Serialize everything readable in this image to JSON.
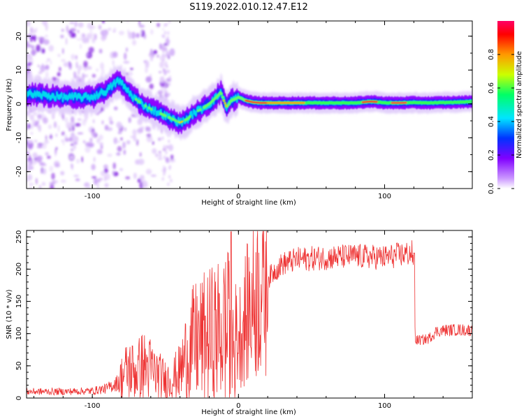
{
  "title": "S119.2022.010.12.47.E12",
  "chart_data": [
    {
      "type": "heatmap",
      "xlabel": "Height of straight line (km)",
      "ylabel": "Frequency (Hz)",
      "xlim": [
        -145,
        160
      ],
      "ylim": [
        -25,
        24.5
      ],
      "xticks": [
        -100,
        0,
        100
      ],
      "yticks": [
        -20,
        -10,
        0,
        10,
        20
      ],
      "colorbar": {
        "label": "Normalized spectral amplitude",
        "range": [
          0,
          1
        ],
        "ticks": [
          0.0,
          0.2,
          0.4,
          0.6,
          0.8
        ],
        "colormap": [
          "#ffffff",
          "#cc99ff",
          "#8000ff",
          "#0033ff",
          "#00e5ff",
          "#00ff66",
          "#ccff00",
          "#ff9900",
          "#ff0000",
          "#ff0066"
        ]
      },
      "ridge": {
        "x": [
          -145,
          -120,
          -100,
          -90,
          -82,
          -78,
          -72,
          -66,
          -60,
          -55,
          -50,
          -45,
          -40,
          -35,
          -30,
          -25,
          -20,
          -15,
          -12,
          -10,
          -8,
          -5,
          -2,
          0,
          5,
          10,
          15,
          20,
          40,
          60,
          80,
          90,
          95,
          100,
          110,
          120,
          130,
          140,
          150,
          160
        ],
        "y": [
          3,
          2,
          2,
          4,
          7,
          5,
          2,
          0,
          -1.5,
          -2.5,
          -3.5,
          -4.5,
          -5.5,
          -4.5,
          -2.5,
          -1.5,
          0,
          2,
          3.5,
          1,
          -1,
          1,
          1.5,
          2,
          1,
          0.5,
          0.3,
          0.3,
          0.3,
          0.3,
          0.3,
          0.7,
          0.6,
          0.3,
          0.3,
          0.4,
          0.3,
          0.4,
          0.5,
          0.7
        ]
      }
    },
    {
      "type": "line",
      "xlabel": "Height of straight line (km)",
      "ylabel": "SNR (10 * v/v)",
      "xlim": [
        -145,
        160
      ],
      "ylim": [
        0,
        260
      ],
      "xticks": [
        -100,
        0,
        100
      ],
      "yticks": [
        0,
        50,
        100,
        150,
        200,
        250
      ],
      "line_color": "#ee3333",
      "series": [
        {
          "x": [
            -145,
            -120,
            -100,
            -90,
            -82,
            -78,
            -75,
            -70,
            -66,
            -60,
            -55,
            -50,
            -45,
            -40,
            -35,
            -30,
            -25,
            -20,
            -15,
            -10,
            -5,
            -2,
            0,
            5,
            10,
            15,
            20,
            25,
            30,
            40,
            60,
            80,
            100,
            110,
            119,
            120,
            121,
            125,
            130,
            135,
            140,
            150,
            160
          ],
          "y": [
            10,
            10,
            11,
            15,
            25,
            38,
            45,
            40,
            50,
            45,
            35,
            28,
            30,
            40,
            70,
            85,
            90,
            95,
            100,
            105,
            110,
            100,
            95,
            125,
            150,
            175,
            185,
            198,
            208,
            215,
            218,
            220,
            218,
            222,
            225,
            170,
            90,
            90,
            92,
            103,
            105,
            106,
            105
          ]
        }
      ]
    }
  ]
}
